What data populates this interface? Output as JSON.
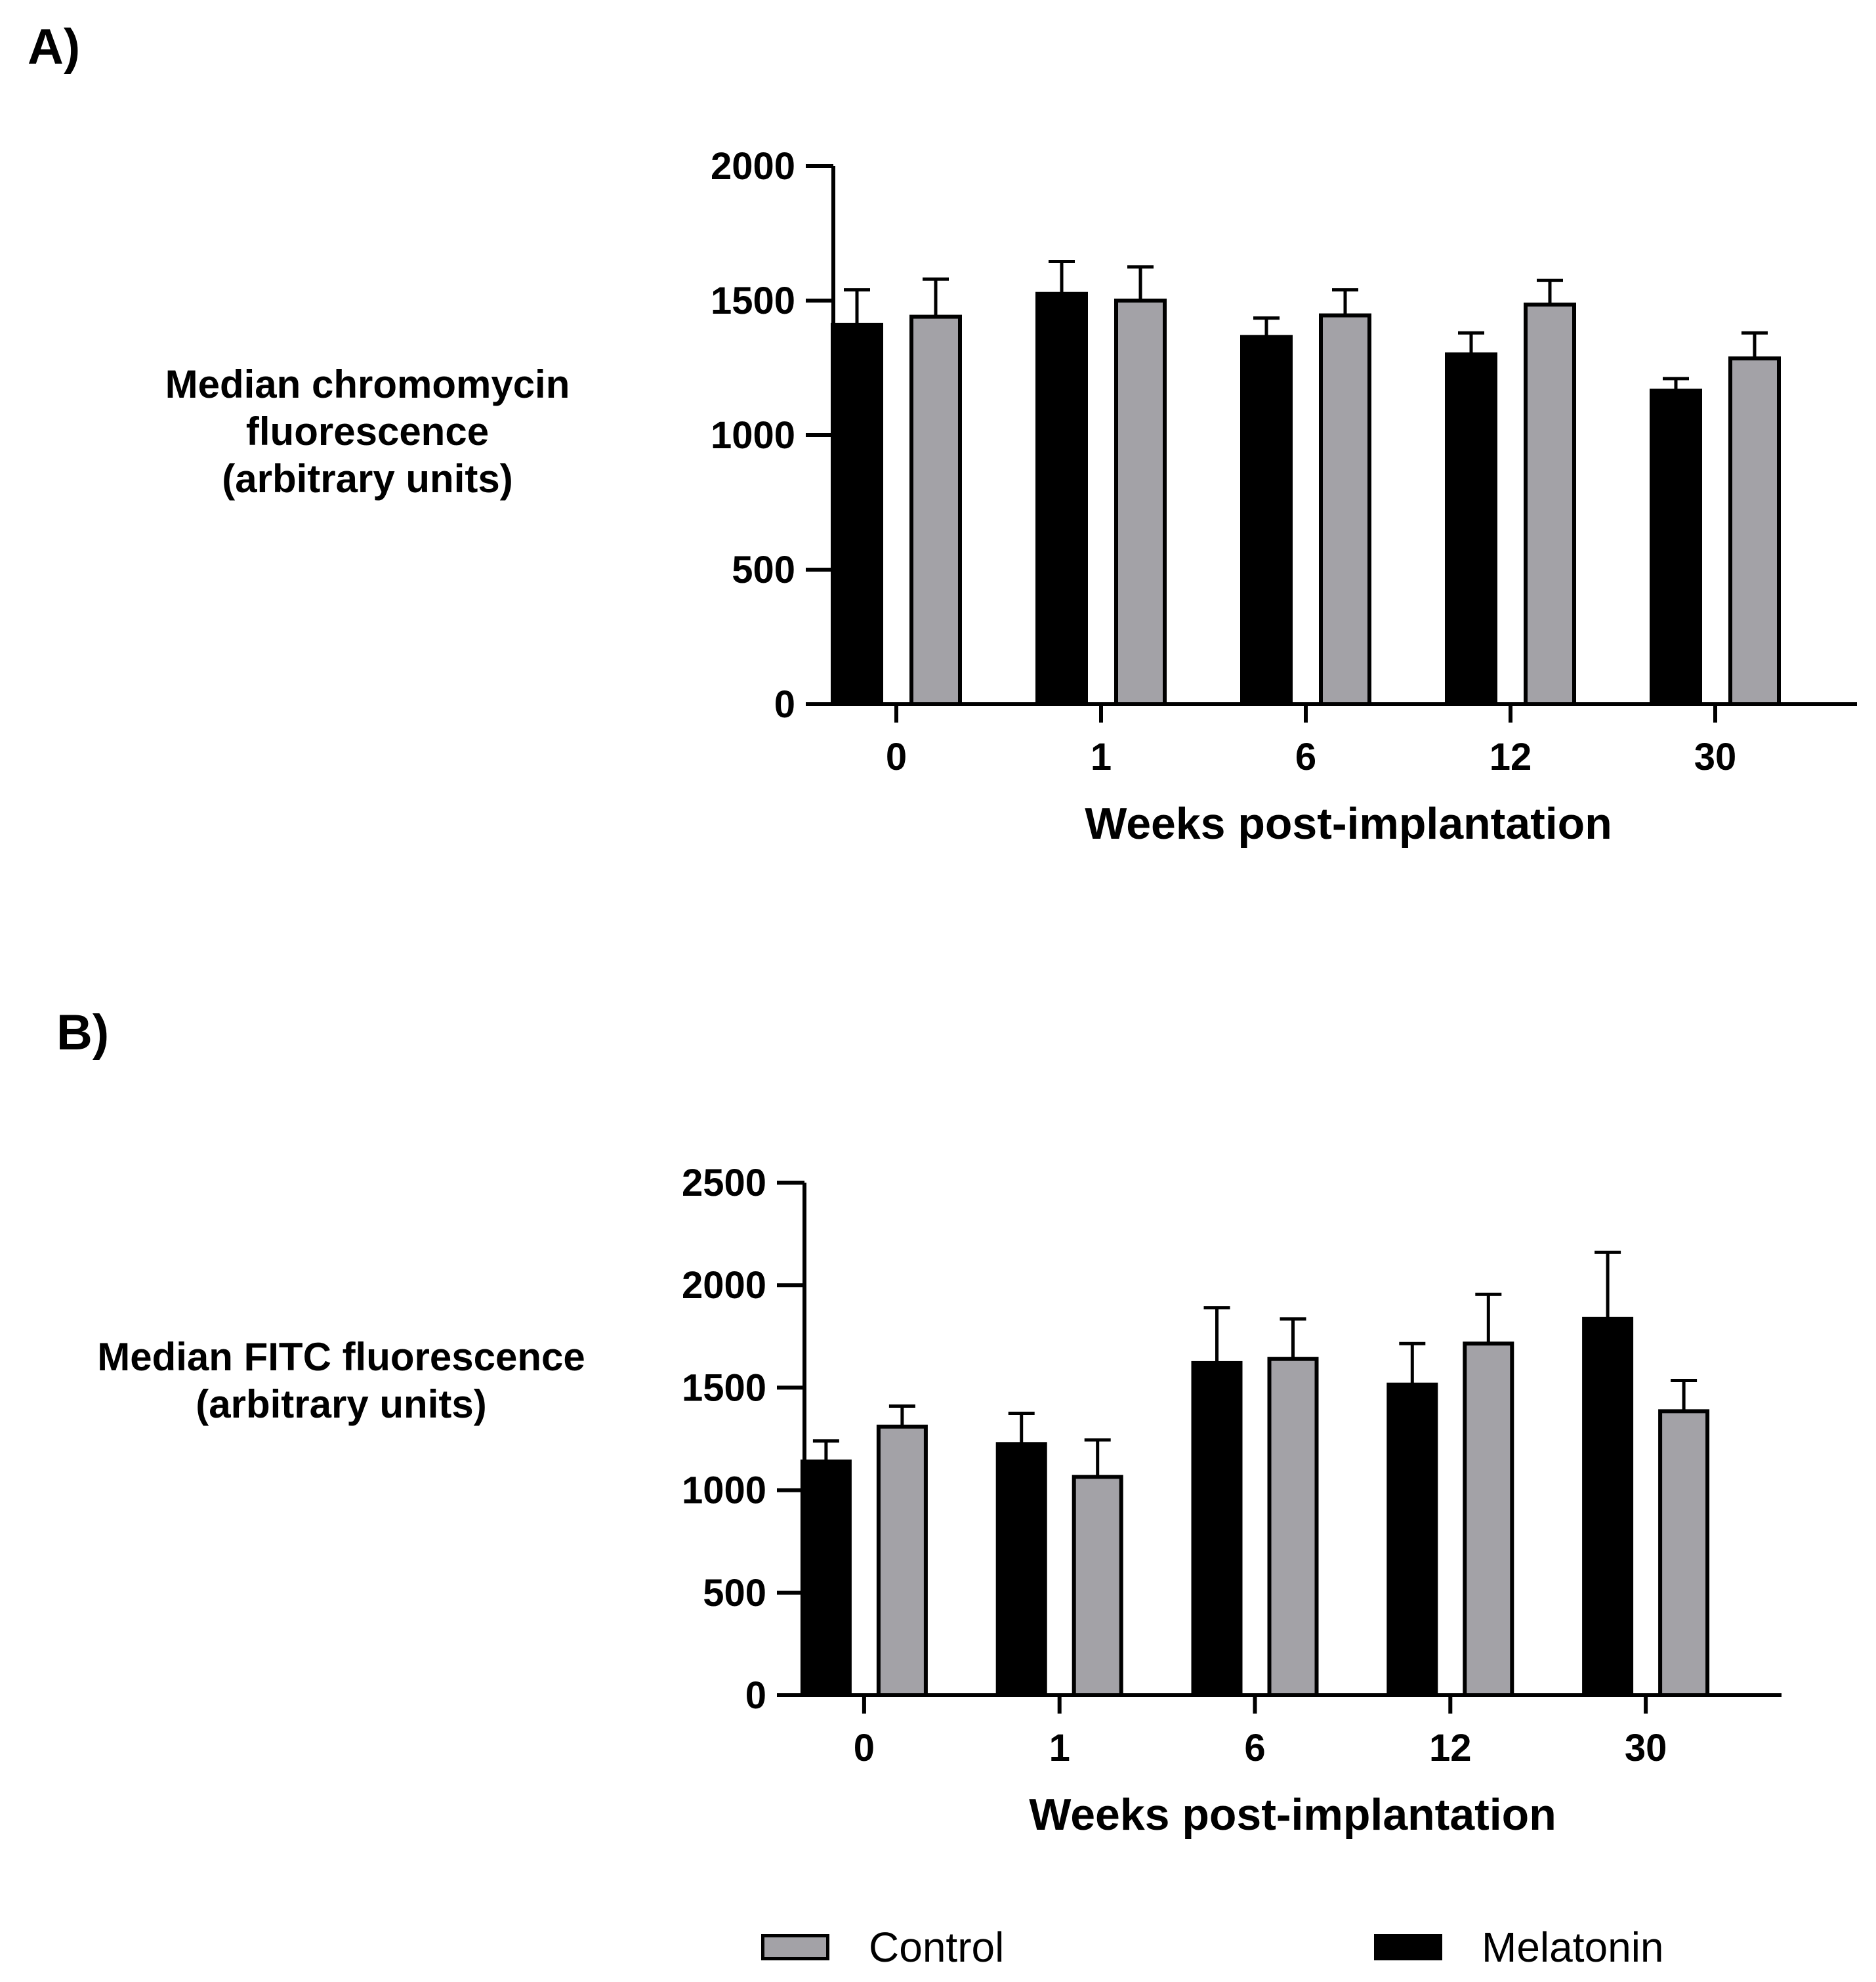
{
  "panels": {
    "a": {
      "label": "A)",
      "ylabel_lines": [
        "Median chromomycin",
        "fluorescence",
        "(arbitrary units)"
      ]
    },
    "b": {
      "label": "B)",
      "ylabel_lines": [
        "Median FITC fluorescence",
        "(arbitrary units)"
      ]
    }
  },
  "legend": {
    "control": "Control",
    "melatonin": "Melatonin"
  },
  "colors": {
    "control": "#a3a2a7",
    "melatonin": "#000000",
    "axis": "#000000"
  },
  "chart_data": [
    {
      "type": "bar",
      "title": "A)",
      "categories": [
        "0",
        "1",
        "6",
        "12",
        "30"
      ],
      "xlabel": "Weeks post-implantation",
      "ylabel": "Median chromomycin fluorescence (arbitrary units)",
      "ylim": [
        0,
        2000
      ],
      "yticks": [
        0,
        500,
        1000,
        1500,
        2000
      ],
      "series": [
        {
          "name": "Melatonin",
          "values": [
            1410,
            1525,
            1365,
            1300,
            1165
          ],
          "errors": [
            130,
            120,
            70,
            80,
            45
          ]
        },
        {
          "name": "Control",
          "values": [
            1440,
            1500,
            1445,
            1485,
            1285
          ],
          "errors": [
            140,
            125,
            95,
            90,
            95
          ]
        }
      ]
    },
    {
      "type": "bar",
      "title": "B)",
      "categories": [
        "0",
        "1",
        "6",
        "12",
        "30"
      ],
      "xlabel": "Weeks post-implantation",
      "ylabel": "Median FITC fluorescence (arbitrary units)",
      "ylim": [
        0,
        2500
      ],
      "yticks": [
        0,
        500,
        1000,
        1500,
        2000,
        2500
      ],
      "series": [
        {
          "name": "Melatonin",
          "values": [
            1140,
            1225,
            1620,
            1515,
            1835
          ],
          "errors": [
            100,
            150,
            270,
            200,
            325
          ]
        },
        {
          "name": "Control",
          "values": [
            1310,
            1065,
            1640,
            1715,
            1385
          ],
          "errors": [
            100,
            180,
            195,
            240,
            150
          ]
        }
      ]
    }
  ]
}
